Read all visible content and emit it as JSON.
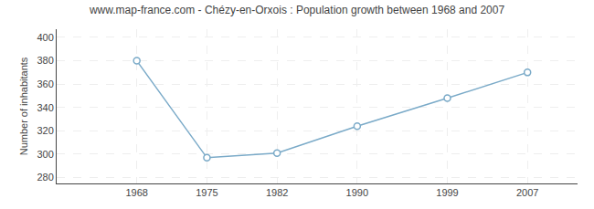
{
  "chart_data": {
    "type": "line",
    "title": "www.map-france.com - Chézy-en-Orxois : Population growth between 1968 and 2007",
    "ylabel": "Number of inhabitants",
    "x": [
      1968,
      1975,
      1982,
      1990,
      1999,
      2007
    ],
    "values": [
      380,
      297,
      301,
      324,
      348,
      370
    ],
    "xlim": [
      1960,
      2012
    ],
    "xticks": [
      1968,
      1975,
      1982,
      1990,
      1999,
      2007
    ],
    "ylim": [
      275,
      407
    ],
    "yticks": [
      280,
      300,
      320,
      340,
      360,
      380,
      400
    ],
    "color": "#7aaac8",
    "marker": "circle",
    "grid": true
  }
}
